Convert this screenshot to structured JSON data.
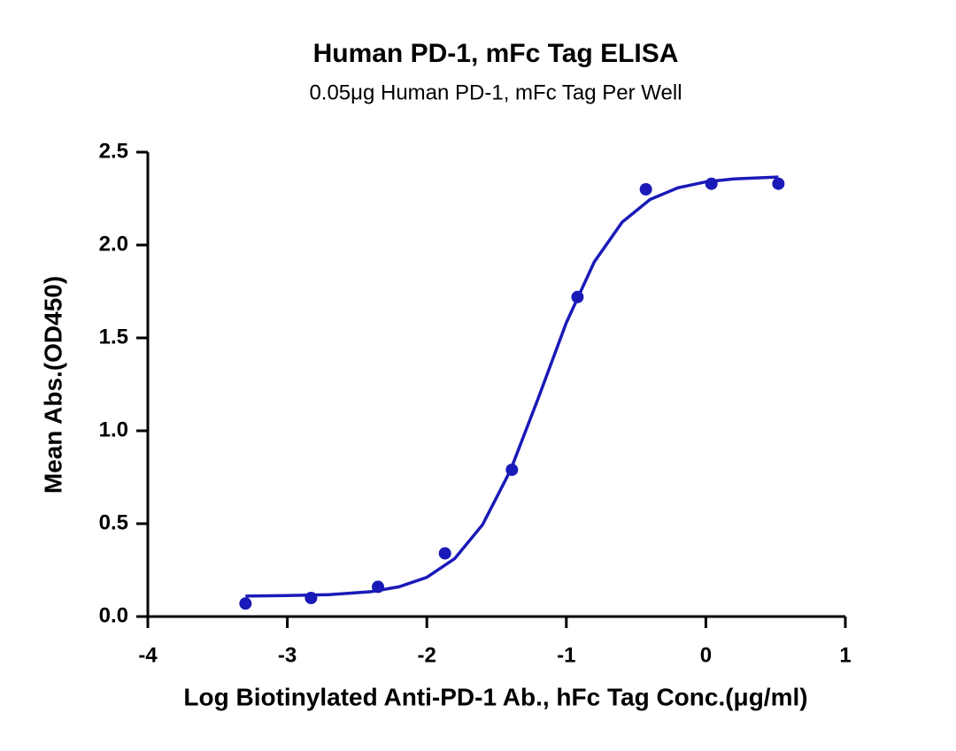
{
  "chart_data": {
    "type": "scatter",
    "title": "Human PD-1, mFc Tag ELISA",
    "subtitle": "0.05μg Human PD-1, mFc Tag Per Well",
    "x_label": "Log Biotinylated Anti-PD-1 Ab., hFc Tag Conc.(μg/ml)",
    "y_label": "Mean Abs.(OD450)",
    "xlim": [
      -4,
      1
    ],
    "xticks": [
      -4,
      -3,
      -2,
      -1,
      0,
      1
    ],
    "ylim": [
      0,
      2.5
    ],
    "yticks": [
      {
        "value": 0,
        "label": "0.0"
      },
      0.5,
      {
        "value": 1,
        "label": "1.0"
      },
      1.5,
      {
        "value": 2,
        "label": "2.0"
      },
      2.5
    ],
    "series": [
      {
        "type": "scatter",
        "color": "#1a1ab8",
        "x": [
          -3.3,
          -2.83,
          -2.35,
          -1.87,
          -1.39,
          -0.92,
          -0.43,
          0.04,
          0.52
        ],
        "values": [
          0.07,
          0.1,
          0.16,
          0.34,
          0.79,
          1.72,
          2.3,
          2.33,
          2.33
        ]
      },
      {
        "type": "line",
        "color": "#1a1ab8",
        "x": [
          -3.3,
          -3.0,
          -2.7,
          -2.4,
          -2.2,
          -2.0,
          -1.8,
          -1.6,
          -1.4,
          -1.2,
          -1.0,
          -0.8,
          -0.6,
          -0.4,
          -0.2,
          0,
          0.2,
          0.52
        ],
        "values": [
          0.11,
          0.113,
          0.118,
          0.134,
          0.16,
          0.211,
          0.312,
          0.495,
          0.788,
          1.178,
          1.582,
          1.909,
          2.123,
          2.245,
          2.308,
          2.34,
          2.356,
          2.366
        ]
      }
    ]
  }
}
